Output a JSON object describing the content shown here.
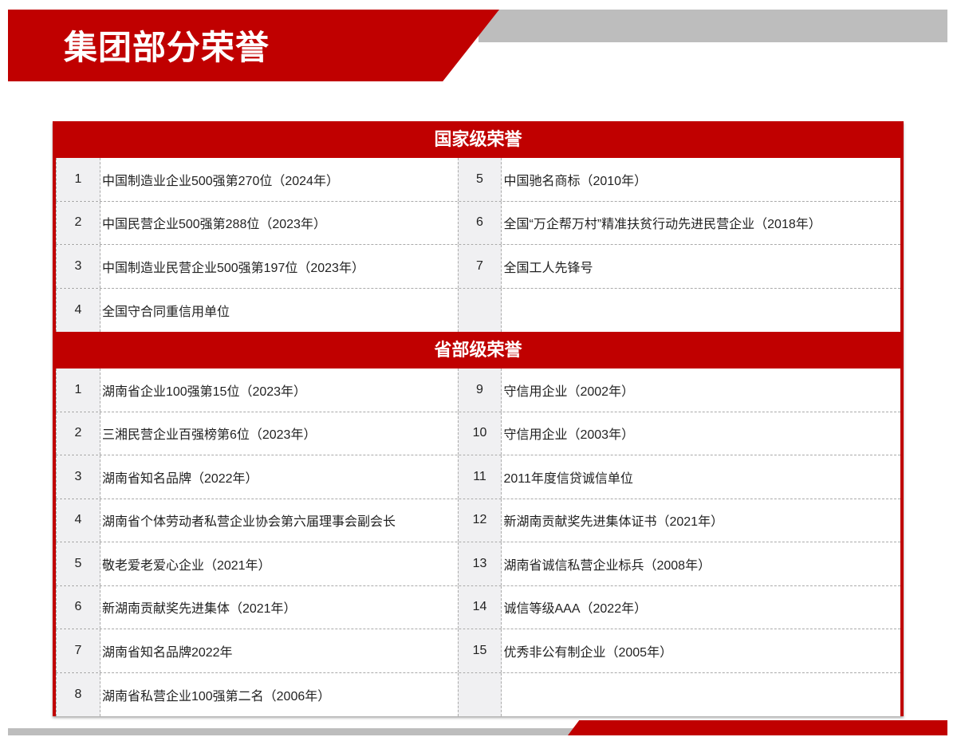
{
  "header": {
    "title": "集团部分荣誉",
    "accent_color": "#c00000",
    "gray_color": "#bdbdbd"
  },
  "sections": [
    {
      "title": "国家级荣誉",
      "rows": [
        {
          "left": {
            "num": "1",
            "text": "中国制造业企业500强第270位（2024年）"
          },
          "right": {
            "num": "5",
            "text": "中国驰名商标（2010年）"
          }
        },
        {
          "left": {
            "num": "2",
            "text": "中国民营企业500强第288位（2023年）"
          },
          "right": {
            "num": "6",
            "text": "全国“万企帮万村”精准扶贫行动先进民营企业（2018年）"
          }
        },
        {
          "left": {
            "num": "3",
            "text": "中国制造业民营企业500强第197位（2023年）"
          },
          "right": {
            "num": "7",
            "text": "全国工人先锋号"
          }
        },
        {
          "left": {
            "num": "4",
            "text": "全国守合同重信用单位"
          },
          "right": {
            "num": "",
            "text": ""
          }
        }
      ]
    },
    {
      "title": "省部级荣誉",
      "rows": [
        {
          "left": {
            "num": "1",
            "text": "湖南省企业100强第15位（2023年）"
          },
          "right": {
            "num": "9",
            "text": "守信用企业（2002年）"
          }
        },
        {
          "left": {
            "num": "2",
            "text": "三湘民营企业百强榜第6位（2023年）"
          },
          "right": {
            "num": "10",
            "text": "守信用企业（2003年）"
          }
        },
        {
          "left": {
            "num": "3",
            "text": "湖南省知名品牌（2022年）"
          },
          "right": {
            "num": "11",
            "text": "2011年度信贷诚信单位"
          }
        },
        {
          "left": {
            "num": "4",
            "text": "湖南省个体劳动者私营企业协会第六届理事会副会长"
          },
          "right": {
            "num": "12",
            "text": "新湖南贡献奖先进集体证书（2021年）"
          }
        },
        {
          "left": {
            "num": "5",
            "text": "敬老爱老爱心企业（2021年）"
          },
          "right": {
            "num": "13",
            "text": "湖南省诚信私营企业标兵（2008年）"
          }
        },
        {
          "left": {
            "num": "6",
            "text": "新湖南贡献奖先进集体（2021年）"
          },
          "right": {
            "num": "14",
            "text": "诚信等级AAA（2022年）"
          }
        },
        {
          "left": {
            "num": "7",
            "text": "湖南省知名品牌2022年"
          },
          "right": {
            "num": "15",
            "text": "优秀非公有制企业（2005年）"
          }
        },
        {
          "left": {
            "num": "8",
            "text": "湖南省私营企业100强第二名（2006年）"
          },
          "right": {
            "num": "",
            "text": ""
          }
        }
      ]
    }
  ]
}
